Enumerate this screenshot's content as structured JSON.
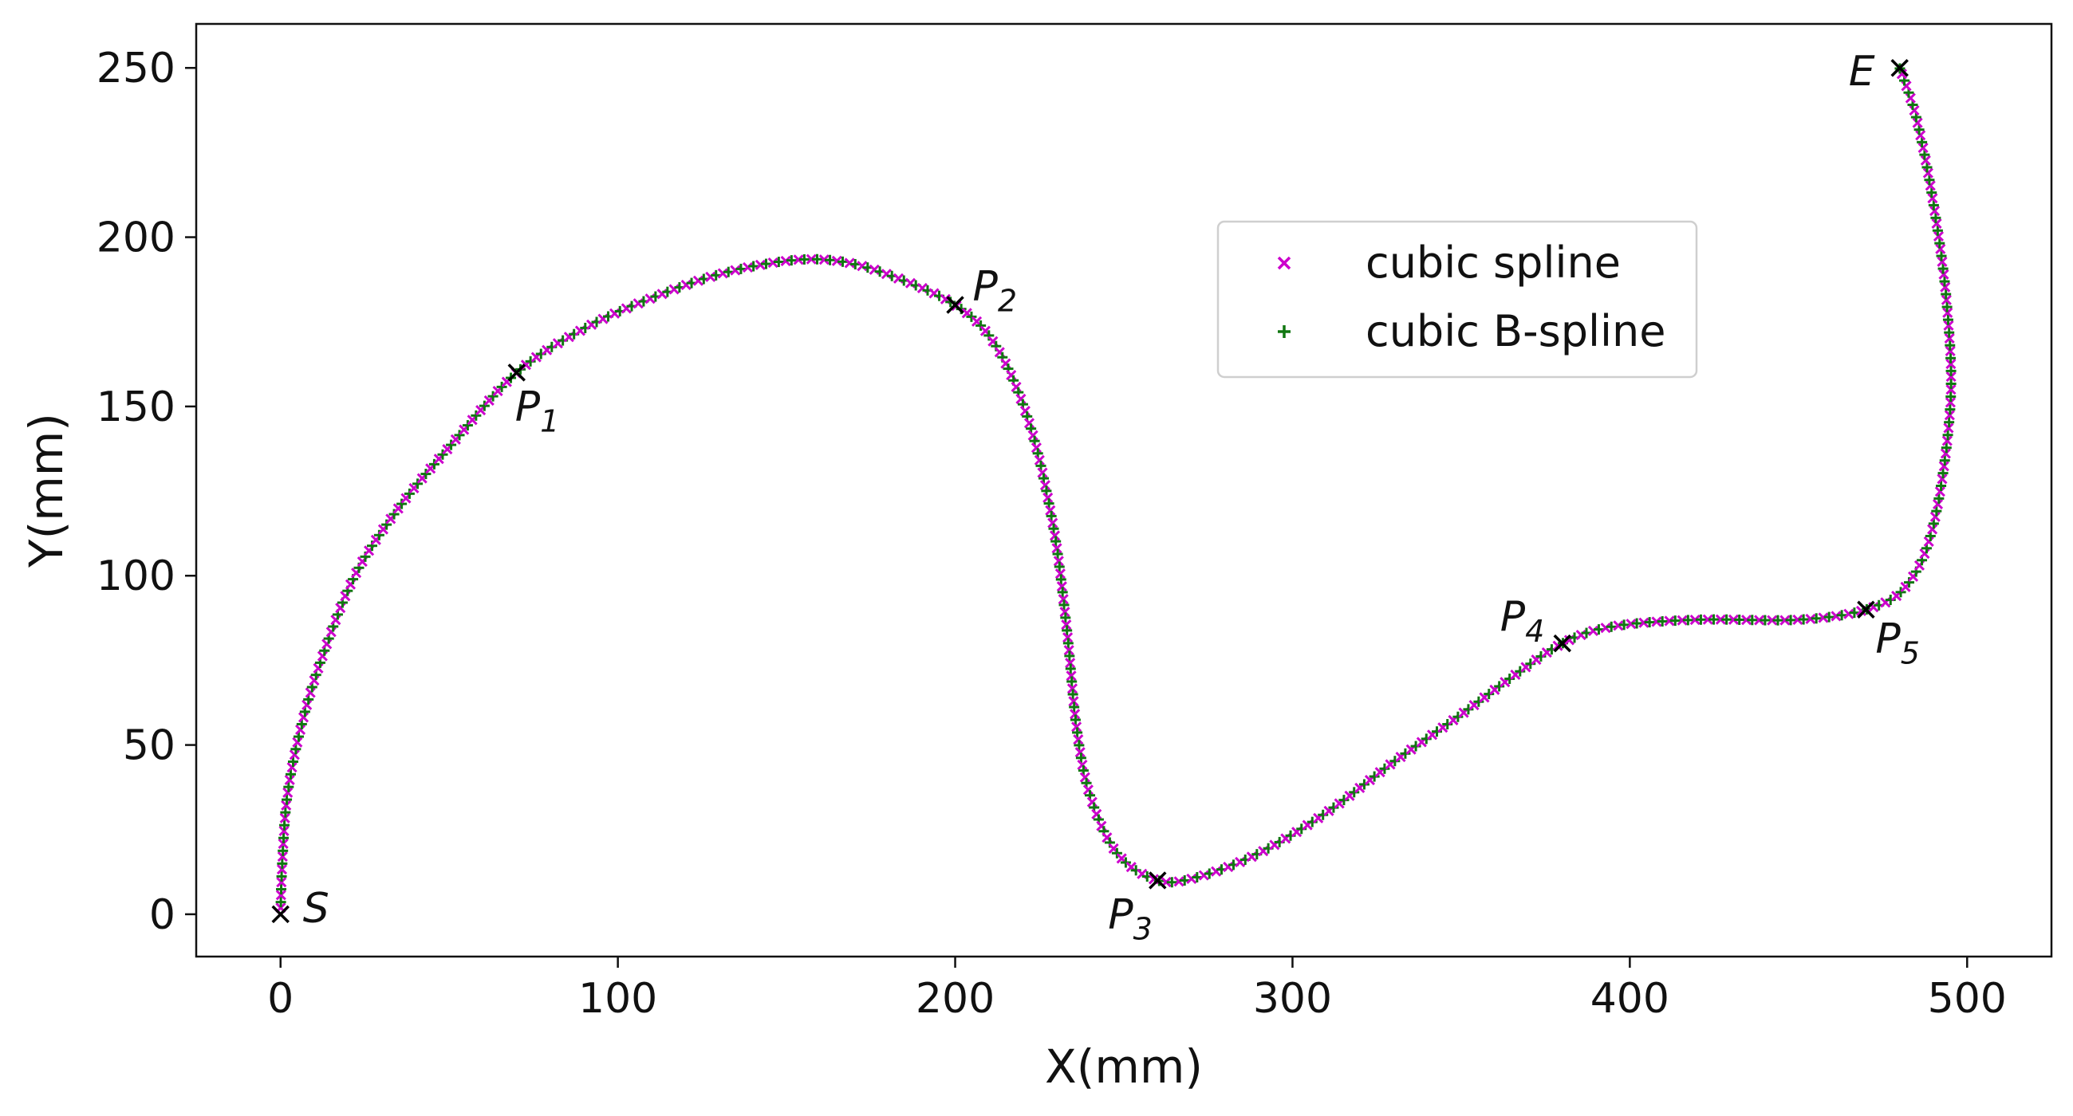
{
  "chart_data": {
    "type": "scatter",
    "title": "",
    "xlabel": "X(mm)",
    "ylabel": "Y(mm)",
    "xlim": [
      -25,
      525
    ],
    "ylim": [
      -12.5,
      263
    ],
    "xticks": [
      0,
      100,
      200,
      300,
      400,
      500
    ],
    "yticks": [
      0,
      50,
      100,
      150,
      200,
      250
    ],
    "grid": false,
    "legend": {
      "position": "upper-right-center",
      "entries": [
        "cubic spline",
        "cubic B-spline"
      ]
    },
    "control_points": [
      {
        "label": "S",
        "sub": "",
        "x": 0,
        "y": 0
      },
      {
        "label": "P",
        "sub": "1",
        "x": 70,
        "y": 160
      },
      {
        "label": "P",
        "sub": "2",
        "x": 200,
        "y": 180
      },
      {
        "label": "P",
        "sub": "3",
        "x": 260,
        "y": 10
      },
      {
        "label": "P",
        "sub": "4",
        "x": 380,
        "y": 80
      },
      {
        "label": "P",
        "sub": "5",
        "x": 470,
        "y": 90
      },
      {
        "label": "E",
        "sub": "",
        "x": 480,
        "y": 250
      }
    ],
    "path_shape": [
      [
        0,
        0
      ],
      [
        0.5,
        15
      ],
      [
        2,
        35
      ],
      [
        6,
        55
      ],
      [
        12,
        75
      ],
      [
        22,
        100
      ],
      [
        35,
        120
      ],
      [
        50,
        138
      ],
      [
        70,
        160
      ],
      [
        90,
        173
      ],
      [
        110,
        182
      ],
      [
        130,
        189
      ],
      [
        150,
        193
      ],
      [
        165,
        193
      ],
      [
        180,
        189
      ],
      [
        200,
        180
      ],
      [
        212,
        168
      ],
      [
        222,
        145
      ],
      [
        229,
        115
      ],
      [
        233,
        85
      ],
      [
        236,
        55
      ],
      [
        240,
        35
      ],
      [
        248,
        18
      ],
      [
        260,
        10
      ],
      [
        272,
        11
      ],
      [
        290,
        18
      ],
      [
        310,
        30
      ],
      [
        330,
        45
      ],
      [
        350,
        59
      ],
      [
        365,
        70
      ],
      [
        380,
        80
      ],
      [
        395,
        85
      ],
      [
        420,
        87
      ],
      [
        450,
        87
      ],
      [
        470,
        90
      ],
      [
        482,
        97
      ],
      [
        490,
        115
      ],
      [
        495,
        150
      ],
      [
        494,
        180
      ],
      [
        490,
        210
      ],
      [
        485,
        235
      ],
      [
        480,
        250
      ]
    ],
    "series": [
      {
        "name": "cubic spline",
        "marker": "x",
        "color": "#cc00cc",
        "points": 240
      },
      {
        "name": "cubic B-spline",
        "marker": "+",
        "color": "#117711",
        "points": 240
      }
    ],
    "control_marker_color": "#000000"
  }
}
